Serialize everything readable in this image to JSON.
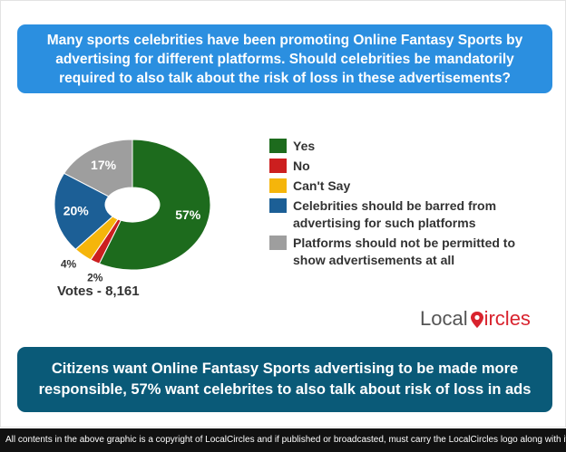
{
  "question": "Many sports celebrities have been promoting Online Fantasy Sports by advertising for different platforms. Should celebrities be mandatorily required to also talk about the risk of loss in these advertisements?",
  "votes_label": "Votes - 8,161",
  "brand": {
    "part1": "Local",
    "part2": "ircles"
  },
  "conclusion": "Citizens want Online Fantasy Sports advertising to be made more responsible, 57% want celebrites to also talk about risk of loss in ads",
  "footer": "All contents in the above graphic is a copyright of LocalCircles and if published or broadcasted, must carry the LocalCircles logo along with it.",
  "colors": {
    "question_bg": "#2b8fe0",
    "conclusion_bg": "#0a5a78",
    "brand_accent": "#d9232e"
  },
  "chart_data": {
    "type": "pie",
    "donut": true,
    "legend_position": "right",
    "slices": [
      {
        "label": "Yes",
        "value": 57,
        "display": "57%",
        "color": "#1d6b1d"
      },
      {
        "label": "No",
        "value": 2,
        "display": "2%",
        "color": "#cc1f1f"
      },
      {
        "label": "Can't Say",
        "value": 4,
        "display": "4%",
        "color": "#f5b50b"
      },
      {
        "label": "Celebrities should be barred from advertising for such platforms",
        "value": 20,
        "display": "20%",
        "color": "#1c5f96"
      },
      {
        "label": "Platforms should not be permitted to show advertisements at all",
        "value": 17,
        "display": "17%",
        "color": "#9e9e9e"
      }
    ]
  }
}
